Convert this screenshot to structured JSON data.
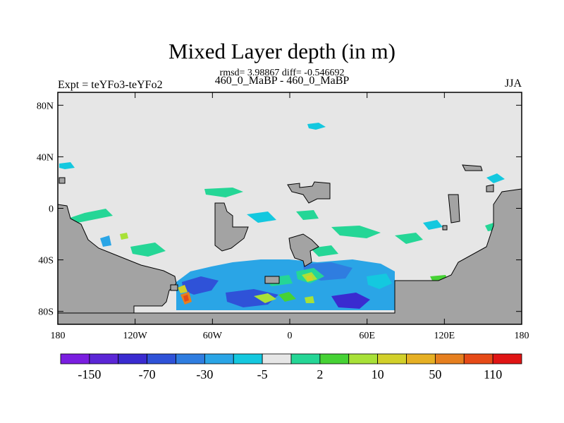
{
  "chart_data": {
    "type": "heatmap",
    "title": "Mixed Layer depth (in m)",
    "stats": "rmsd= 3.98867 diff= -0.546692",
    "left_label": "Expt = teYFo3-teYFo2",
    "center_label": "460_0_MaBP - 460_0_MaBP",
    "right_label": "JJA",
    "x_ticks": [
      "180",
      "120W",
      "60W",
      "0",
      "60E",
      "120E",
      "180"
    ],
    "y_ticks": [
      "80N",
      "40N",
      "0",
      "40S",
      "80S"
    ],
    "xlim": [
      -180,
      180
    ],
    "ylim": [
      -90,
      90
    ],
    "colorbar": {
      "colors": [
        "#7a1ee0",
        "#5b26d6",
        "#3a2bd0",
        "#2f52d8",
        "#2f7de0",
        "#2aa5e6",
        "#14c8df",
        "#e6e6e6",
        "#25d696",
        "#46d235",
        "#a8e138",
        "#d2d02a",
        "#e6b024",
        "#e67f1f",
        "#e64a17",
        "#e01414"
      ],
      "tick_labels": [
        "-150",
        "-70",
        "-30",
        "-5",
        "2",
        "10",
        "50",
        "110"
      ]
    },
    "fill_color": "#e6e6e6",
    "land_color": "#a3a3a3"
  }
}
